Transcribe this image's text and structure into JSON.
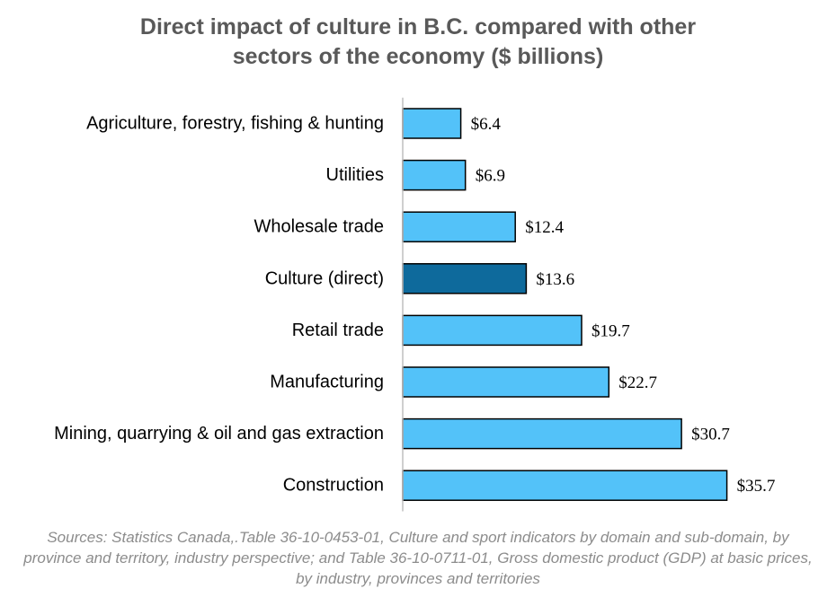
{
  "chart_data": {
    "type": "bar",
    "orientation": "horizontal",
    "title_lines": [
      "Direct impact of culture in B.C. compared with other",
      "sectors of the economy ($ billions)"
    ],
    "categories": [
      "Agriculture, forestry, fishing & hunting",
      "Utilities",
      "Wholesale trade",
      "Culture (direct)",
      "Retail trade",
      "Manufacturing",
      "Mining, quarrying & oil and gas extraction",
      "Construction"
    ],
    "values": [
      6.4,
      6.9,
      12.4,
      13.6,
      19.7,
      22.7,
      30.7,
      35.7
    ],
    "value_labels": [
      "$6.4",
      "$6.9",
      "$12.4",
      "$13.6",
      "$19.7",
      "$22.7",
      "$30.7",
      "$35.7"
    ],
    "highlight_category": "Culture (direct)",
    "xlim": [
      0,
      37
    ],
    "grid": false,
    "legend": "none",
    "colors": {
      "bar": "#53C2F9",
      "highlight": "#0E6A9C",
      "outline": "#000000",
      "axis": "#BFBFBF"
    }
  },
  "sources": "Sources: Statistics Canada,.Table 36-10-0453-01, Culture and sport indicators by domain and sub-domain, by province and territory, industry perspective; and Table 36-10-0711-01, Gross domestic product (GDP) at basic prices, by industry, provinces and territories"
}
